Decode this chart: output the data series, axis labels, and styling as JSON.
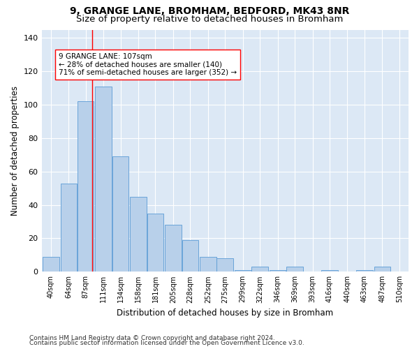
{
  "title1": "9, GRANGE LANE, BROMHAM, BEDFORD, MK43 8NR",
  "title2": "Size of property relative to detached houses in Bromham",
  "xlabel": "Distribution of detached houses by size in Bromham",
  "ylabel": "Number of detached properties",
  "footer1": "Contains HM Land Registry data © Crown copyright and database right 2024.",
  "footer2": "Contains public sector information licensed under the Open Government Licence v3.0.",
  "bin_labels": [
    "40sqm",
    "64sqm",
    "87sqm",
    "111sqm",
    "134sqm",
    "158sqm",
    "181sqm",
    "205sqm",
    "228sqm",
    "252sqm",
    "275sqm",
    "299sqm",
    "322sqm",
    "346sqm",
    "369sqm",
    "393sqm",
    "416sqm",
    "440sqm",
    "463sqm",
    "487sqm",
    "510sqm"
  ],
  "bar_values": [
    9,
    53,
    102,
    111,
    69,
    45,
    35,
    28,
    19,
    9,
    8,
    1,
    3,
    1,
    3,
    0,
    1,
    0,
    1,
    3,
    0
  ],
  "bar_color": "#b8d0ea",
  "bar_edge_color": "#5b9bd5",
  "vline_x": 107,
  "vline_color": "red",
  "annotation_text": "9 GRANGE LANE: 107sqm\n← 28% of detached houses are smaller (140)\n71% of semi-detached houses are larger (352) →",
  "annotation_box_color": "white",
  "annotation_border_color": "red",
  "ylim": [
    0,
    145
  ],
  "bin_width": 23,
  "background_color": "#dce8f5",
  "grid_color": "#ffffff",
  "title1_fontsize": 10,
  "title2_fontsize": 9.5,
  "xlabel_fontsize": 8.5,
  "ylabel_fontsize": 8.5,
  "tick_fontsize": 7,
  "annotation_fontsize": 7.5,
  "footer_fontsize": 6.5
}
